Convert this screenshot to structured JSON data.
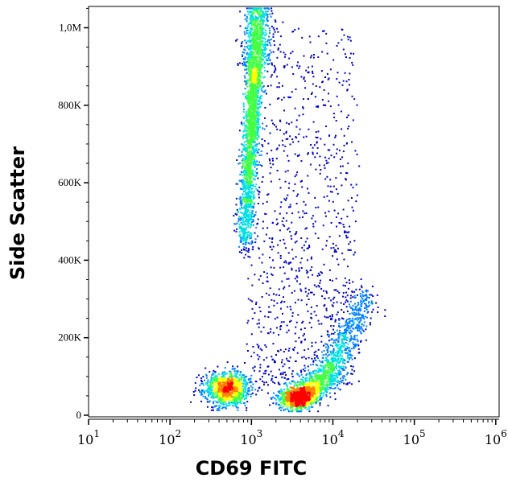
{
  "chart_data": {
    "type": "scatter",
    "subtype": "flow-cytometry density dot plot",
    "xlabel": "CD69 FITC",
    "ylabel": "Side Scatter",
    "x_scale": "log",
    "xlim": [
      10,
      1100000
    ],
    "ylim": [
      0,
      1055000
    ],
    "x_ticks": [
      {
        "base": "10",
        "exp": "1",
        "value": 10
      },
      {
        "base": "10",
        "exp": "2",
        "value": 100
      },
      {
        "base": "10",
        "exp": "3",
        "value": 1000
      },
      {
        "base": "10",
        "exp": "4",
        "value": 10000
      },
      {
        "base": "10",
        "exp": "5",
        "value": 100000
      },
      {
        "base": "10",
        "exp": "6",
        "value": 1000000
      }
    ],
    "y_ticks": [
      {
        "label": "0",
        "value": 0
      },
      {
        "label": "200K",
        "value": 200000
      },
      {
        "label": "400K",
        "value": 400000
      },
      {
        "label": "600K",
        "value": 600000
      },
      {
        "label": "800K",
        "value": 800000
      },
      {
        "label": "1,0M",
        "value": 1000000
      }
    ],
    "colormap": [
      "#0000c8",
      "#0080ff",
      "#00e0e0",
      "#40ff40",
      "#ffff00",
      "#ff8000",
      "#ff0000"
    ],
    "grid": false,
    "populations": [
      {
        "center_x": 1000,
        "center_y": 700000,
        "y_range": [
          430000,
          1055000
        ],
        "weight": 0.36
      },
      {
        "center_x": 500,
        "center_y": 70000,
        "weight": 0.17
      },
      {
        "center_x": 3000,
        "center_y": 45000,
        "end_x": 25000,
        "end_y": 300000,
        "weight": 0.3
      },
      {
        "x_range": [
          1000,
          30000
        ],
        "y_range": [
          80000,
          1000000
        ],
        "weight": 0.17
      }
    ]
  }
}
